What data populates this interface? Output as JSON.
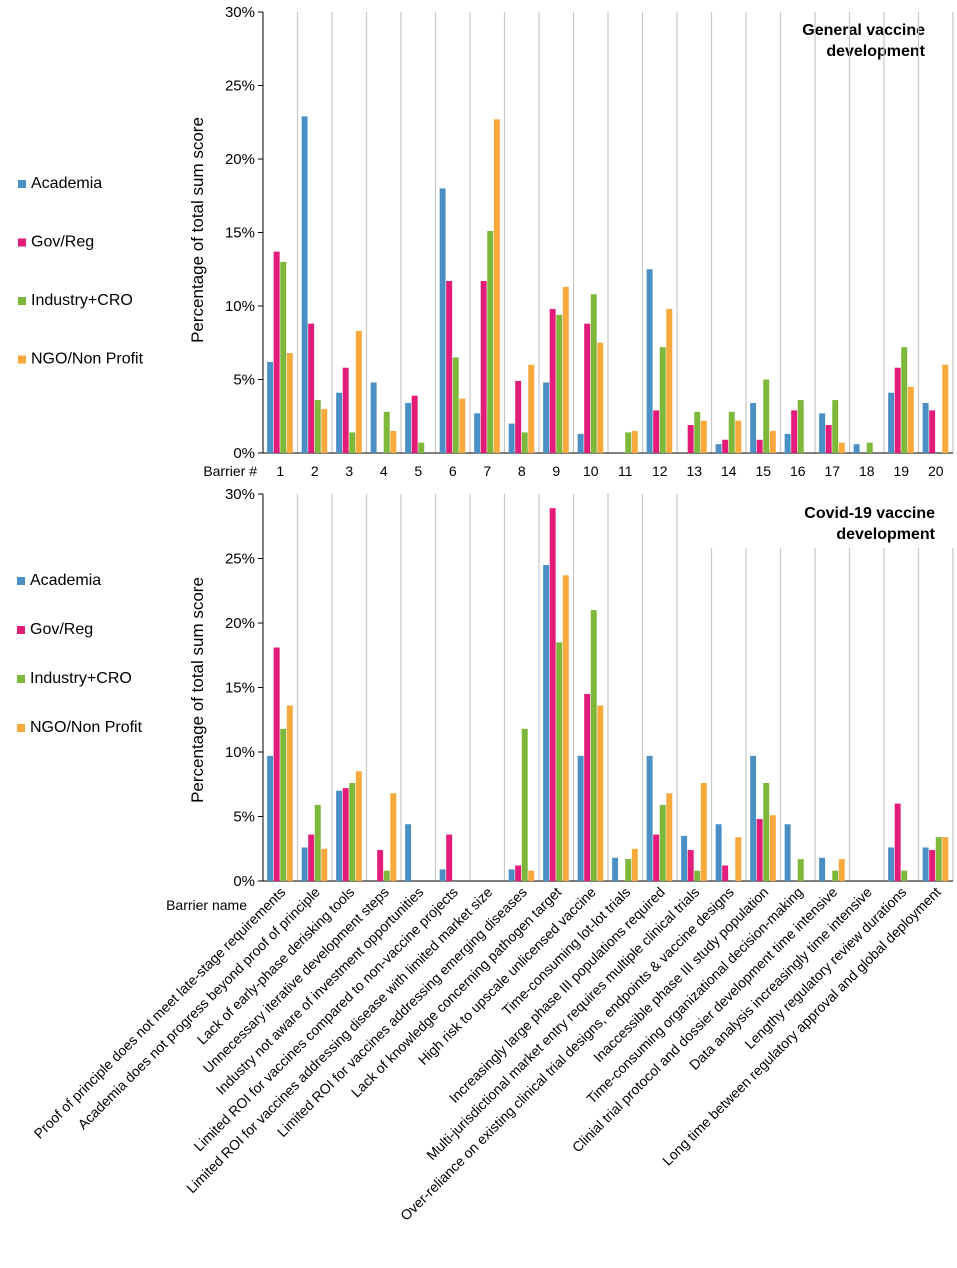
{
  "chart_data": [
    {
      "type": "bar",
      "title": "General vaccine development",
      "ylabel": "Percentage of total sum score",
      "xlabel": "Barrier #",
      "ylim": [
        0,
        30
      ],
      "yticks": [
        "0%",
        "5%",
        "10%",
        "15%",
        "20%",
        "25%",
        "30%"
      ],
      "categories": [
        "1",
        "2",
        "3",
        "4",
        "5",
        "6",
        "7",
        "8",
        "9",
        "10",
        "11",
        "12",
        "13",
        "14",
        "15",
        "16",
        "17",
        "18",
        "19",
        "20"
      ],
      "series": [
        {
          "name": "Academia",
          "color": "#4a90c4",
          "values": [
            6.2,
            22.9,
            4.1,
            4.8,
            3.4,
            18.0,
            2.7,
            2.0,
            4.8,
            1.3,
            0,
            12.5,
            0,
            0.6,
            3.4,
            1.3,
            2.7,
            0.6,
            4.1,
            3.4
          ]
        },
        {
          "name": "Gov/Reg",
          "color": "#e31b79",
          "values": [
            13.7,
            8.8,
            5.8,
            0,
            3.9,
            11.7,
            11.7,
            4.9,
            9.8,
            8.8,
            0,
            2.9,
            1.9,
            0.9,
            0.9,
            2.9,
            1.9,
            0,
            5.8,
            2.9
          ]
        },
        {
          "name": "Industry+CRO",
          "color": "#7db83a",
          "values": [
            13.0,
            3.6,
            1.4,
            2.8,
            0.7,
            6.5,
            15.1,
            1.4,
            9.4,
            10.8,
            1.4,
            7.2,
            2.8,
            2.8,
            5.0,
            3.6,
            3.6,
            0.7,
            7.2,
            0
          ]
        },
        {
          "name": "NGO/Non Profit",
          "color": "#f7a93b",
          "values": [
            6.8,
            3.0,
            8.3,
            1.5,
            0,
            3.7,
            22.7,
            6.0,
            11.3,
            7.5,
            1.5,
            9.8,
            2.2,
            2.2,
            1.5,
            0,
            0.7,
            0,
            4.5,
            6.0
          ]
        }
      ]
    },
    {
      "type": "bar",
      "title": "Covid-19 vaccine development",
      "ylabel": "Percentage of total sum score",
      "xlabel": "Barrier name",
      "ylim": [
        0,
        30
      ],
      "yticks": [
        "0%",
        "5%",
        "10%",
        "15%",
        "20%",
        "25%",
        "30%"
      ],
      "categories": [
        "Proof of principle does not meet late-stage requirements",
        "Academia does not progress beyond proof of principle",
        "Lack of early-phase derisking tools",
        "Unnecessary iterative development steps",
        "Industry not aware of investment opportunities",
        "Limited ROI for vaccines compared to non-vaccine projects",
        "Limited ROI for vaccines addressing disease with limited market size",
        "Limited ROI for vaccines addressing emerging diseases",
        "Lack of knowledge concerning pathogen target",
        "High risk to upscale unlicensed vaccine",
        "Time-consuming lot-lot trials",
        "Increasingly large phase III populations required",
        "Multi-jurisdictional market entry requires multiple clinical trials",
        "Over-reliance on existing clinical trial designs, endpoints & vaccine designs",
        "Inaccessible phase III study population",
        "Time-consuming organizational decision-making",
        "Clinial trial protocol and dossier development time intensive",
        "Data analysis increasingly time intensive",
        "Lengthy regulatory review durations",
        "Long time between regulatory approval and global deployment"
      ],
      "series": [
        {
          "name": "Academia",
          "color": "#4a90c4",
          "values": [
            9.7,
            2.6,
            7.0,
            0,
            4.4,
            0.9,
            0,
            0.9,
            24.5,
            9.7,
            1.8,
            9.7,
            3.5,
            4.4,
            9.7,
            4.4,
            1.8,
            0,
            2.6,
            2.6
          ]
        },
        {
          "name": "Gov/Reg",
          "color": "#e31b79",
          "values": [
            18.1,
            3.6,
            7.2,
            2.4,
            0,
            3.6,
            0,
            1.2,
            28.9,
            14.5,
            0,
            3.6,
            2.4,
            1.2,
            4.8,
            0,
            0,
            0,
            6.0,
            2.4
          ]
        },
        {
          "name": "Industry+CRO",
          "color": "#7db83a",
          "values": [
            11.8,
            5.9,
            7.6,
            0.8,
            0,
            0,
            0,
            11.8,
            18.5,
            21.0,
            1.7,
            5.9,
            0.8,
            0,
            7.6,
            1.7,
            0.8,
            0,
            0.8,
            3.4
          ]
        },
        {
          "name": "NGO/Non Profit",
          "color": "#f7a93b",
          "values": [
            13.6,
            2.5,
            8.5,
            6.8,
            0,
            0,
            0,
            0.8,
            23.7,
            13.6,
            2.5,
            6.8,
            7.6,
            3.4,
            5.1,
            0,
            1.7,
            0,
            0,
            3.4
          ]
        }
      ]
    }
  ]
}
